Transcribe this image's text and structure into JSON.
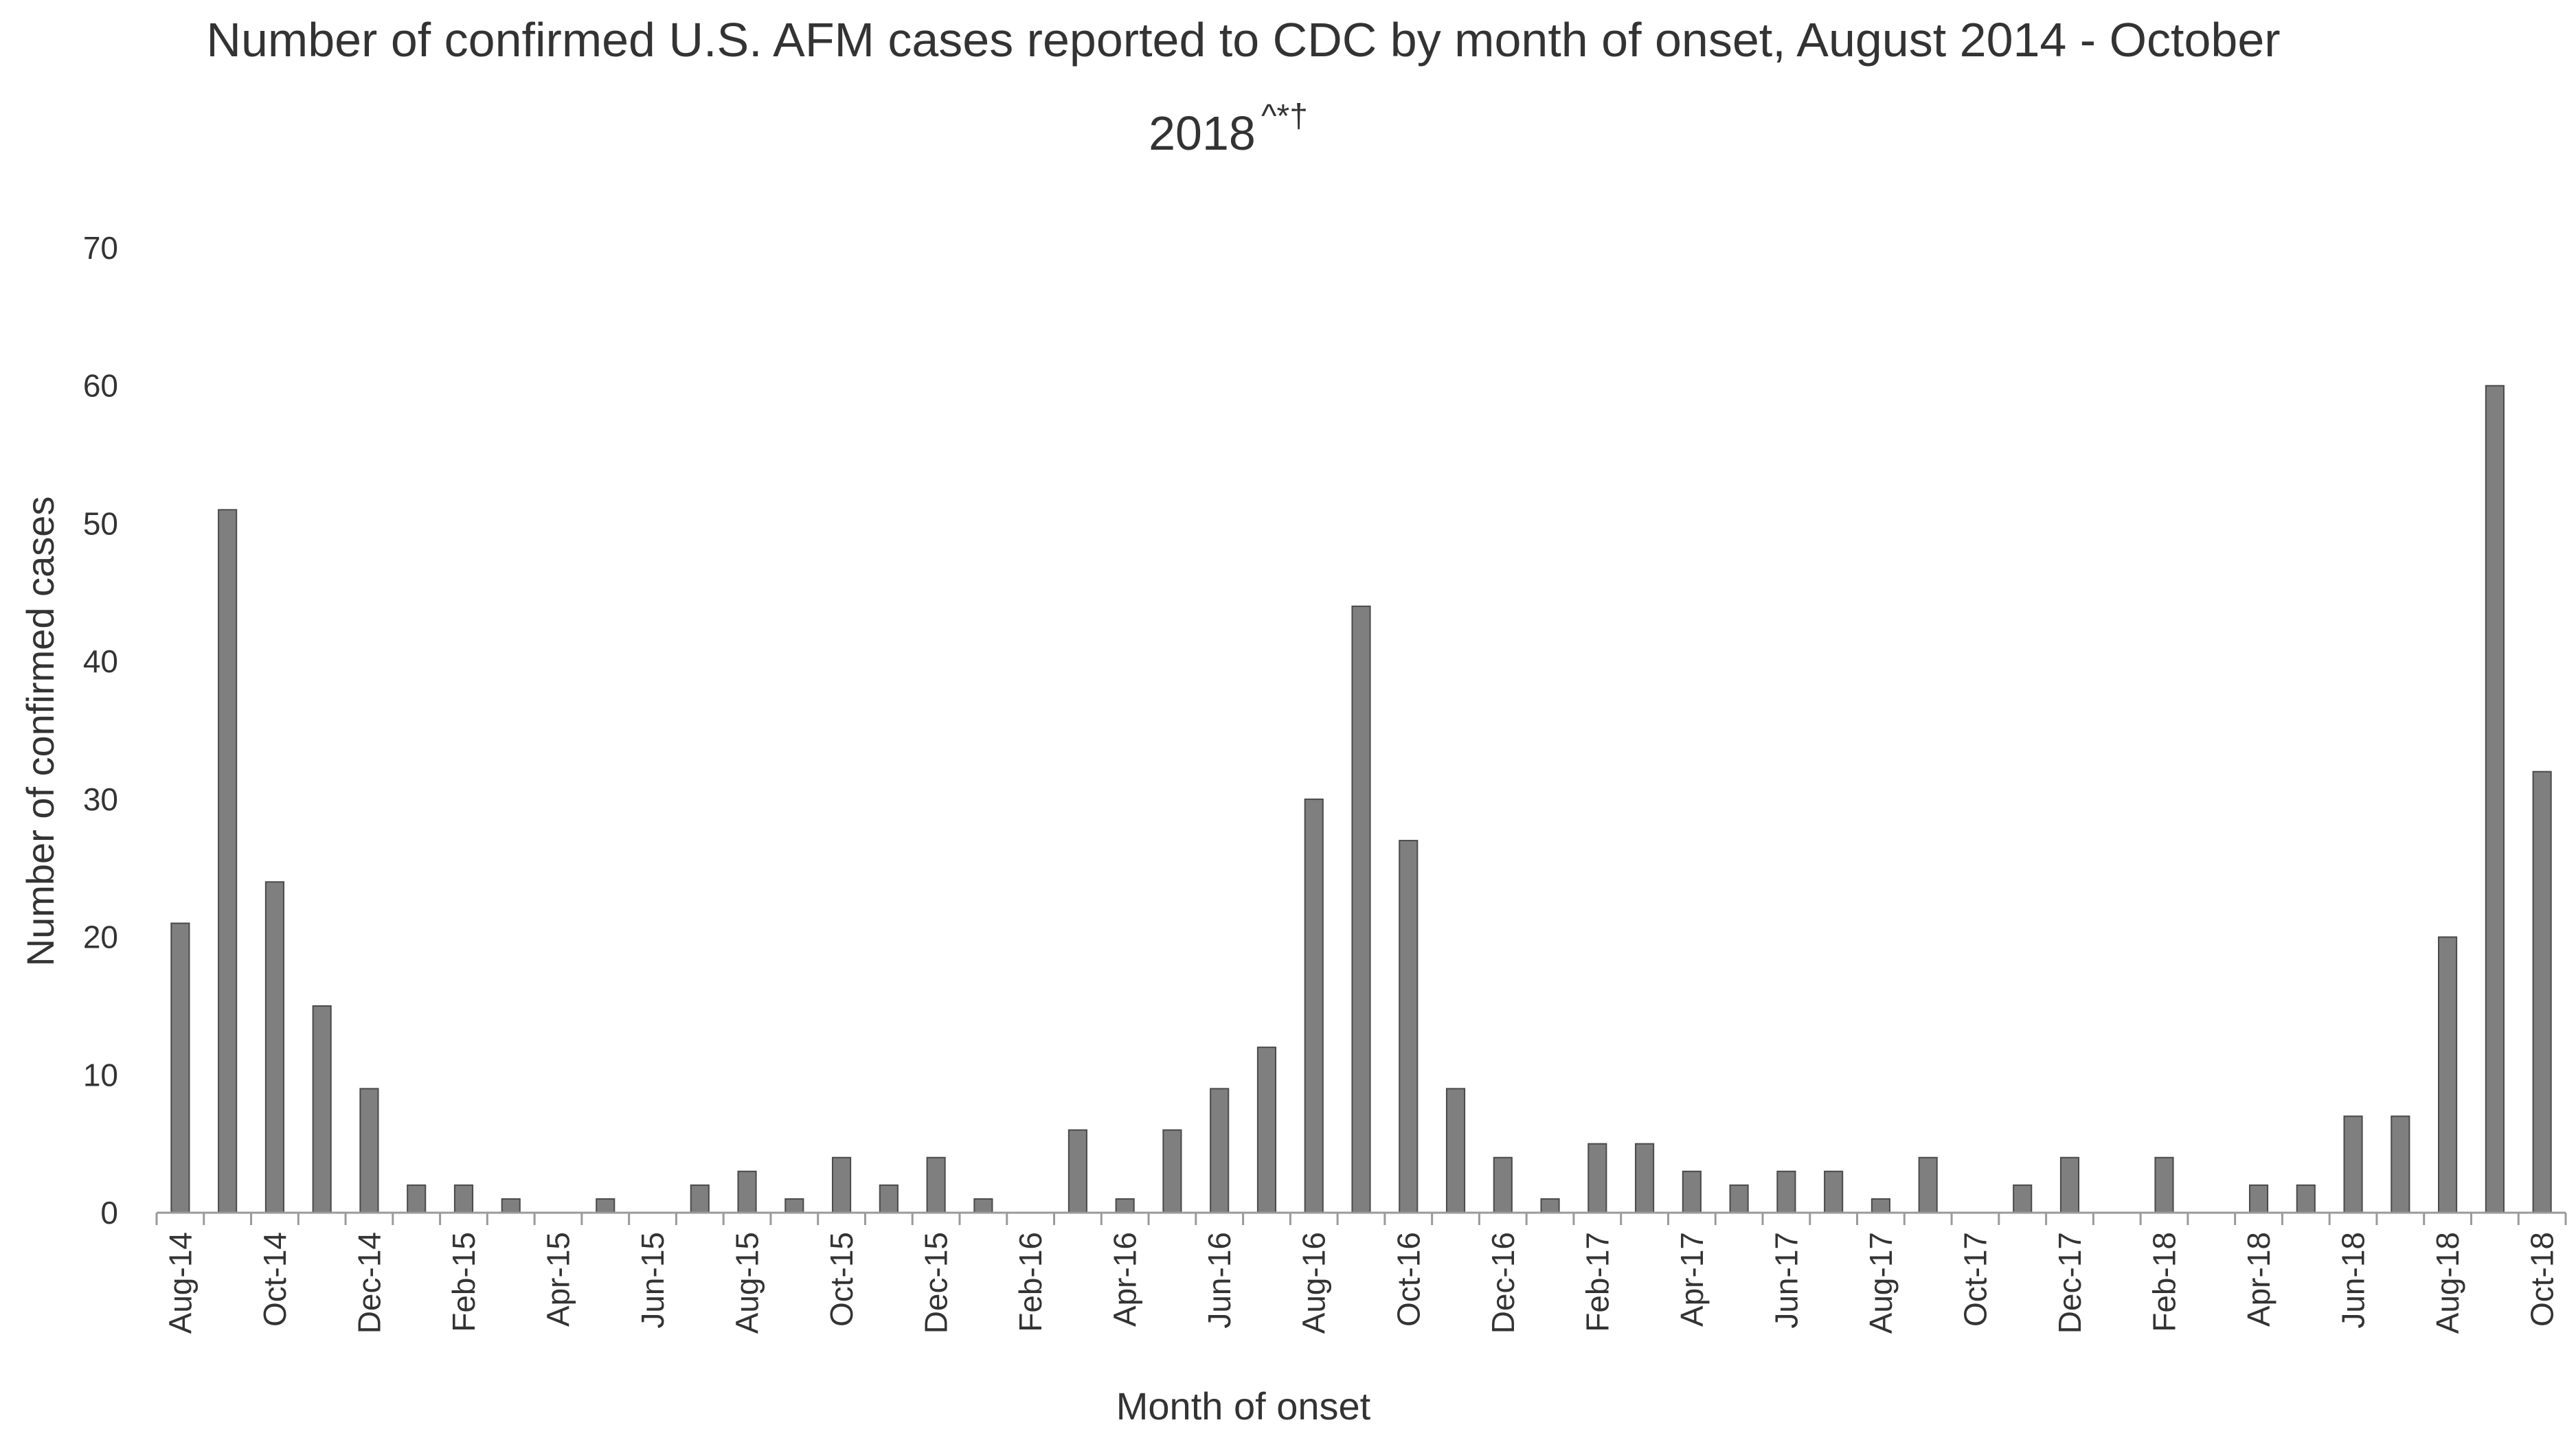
{
  "chart_data": {
    "type": "bar",
    "title": {
      "line1": "Number of confirmed U.S. AFM cases reported to CDC by month of onset, August 2014 - October",
      "line2": "2018",
      "superscript": "^*†"
    },
    "xlabel": "Month of onset",
    "ylabel": "Number of confirmed cases",
    "ylim": [
      0,
      70
    ],
    "yticks": [
      "0",
      "10",
      "20",
      "30",
      "40",
      "50",
      "60",
      "70"
    ],
    "grid": false,
    "legend": "none",
    "bar_color": "#7f7f7f",
    "categories": [
      "Aug-14",
      "Sep-14",
      "Oct-14",
      "Nov-14",
      "Dec-14",
      "Jan-15",
      "Feb-15",
      "Mar-15",
      "Apr-15",
      "May-15",
      "Jun-15",
      "Jul-15",
      "Aug-15",
      "Sep-15",
      "Oct-15",
      "Nov-15",
      "Dec-15",
      "Jan-16",
      "Feb-16",
      "Mar-16",
      "Apr-16",
      "May-16",
      "Jun-16",
      "Jul-16",
      "Aug-16",
      "Sep-16",
      "Oct-16",
      "Nov-16",
      "Dec-16",
      "Jan-17",
      "Feb-17",
      "Mar-17",
      "Apr-17",
      "May-17",
      "Jun-17",
      "Jul-17",
      "Aug-17",
      "Sep-17",
      "Oct-17",
      "Nov-17",
      "Dec-17",
      "Jan-18",
      "Feb-18",
      "Mar-18",
      "Apr-18",
      "May-18",
      "Jun-18",
      "Jul-18",
      "Aug-18",
      "Sep-18",
      "Oct-18"
    ],
    "values": [
      21,
      51,
      24,
      15,
      9,
      2,
      2,
      1,
      0,
      1,
      0,
      2,
      3,
      1,
      4,
      2,
      4,
      1,
      0,
      6,
      1,
      6,
      9,
      12,
      30,
      44,
      27,
      9,
      4,
      1,
      5,
      5,
      3,
      2,
      3,
      3,
      1,
      4,
      0,
      2,
      4,
      0,
      4,
      0,
      2,
      2,
      7,
      7,
      20,
      60,
      32
    ],
    "xtick_labels": [
      "Aug-14",
      "",
      "Oct-14",
      "",
      "Dec-14",
      "",
      "Feb-15",
      "",
      "Apr-15",
      "",
      "Jun-15",
      "",
      "Aug-15",
      "",
      "Oct-15",
      "",
      "Dec-15",
      "",
      "Feb-16",
      "",
      "Apr-16",
      "",
      "Jun-16",
      "",
      "Aug-16",
      "",
      "Oct-16",
      "",
      "Dec-16",
      "",
      "Feb-17",
      "",
      "Apr-17",
      "",
      "Jun-17",
      "",
      "Aug-17",
      "",
      "Oct-17",
      "",
      "Dec-17",
      "",
      "Feb-18",
      "",
      "Apr-18",
      "",
      "Jun-18",
      "",
      "Aug-18",
      "",
      "Oct-18"
    ]
  }
}
